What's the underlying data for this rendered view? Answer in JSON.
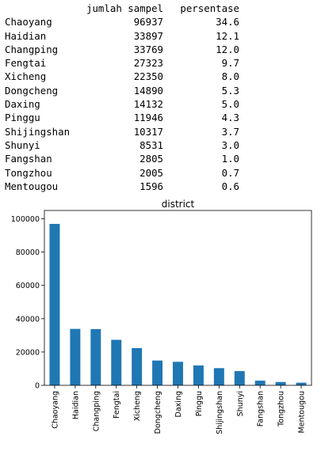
{
  "table": {
    "columns": [
      "jumlah sampel",
      "persentase"
    ],
    "rows": [
      {
        "district": "Chaoyang",
        "jumlah_sampel": "96937",
        "persentase": "34.6"
      },
      {
        "district": "Haidian",
        "jumlah_sampel": "33897",
        "persentase": "12.1"
      },
      {
        "district": "Changping",
        "jumlah_sampel": "33769",
        "persentase": "12.0"
      },
      {
        "district": "Fengtai",
        "jumlah_sampel": "27323",
        "persentase": "9.7"
      },
      {
        "district": "Xicheng",
        "jumlah_sampel": "22350",
        "persentase": "8.0"
      },
      {
        "district": "Dongcheng",
        "jumlah_sampel": "14890",
        "persentase": "5.3"
      },
      {
        "district": "Daxing",
        "jumlah_sampel": "14132",
        "persentase": "5.0"
      },
      {
        "district": "Pinggu",
        "jumlah_sampel": "11946",
        "persentase": "4.3"
      },
      {
        "district": "Shijingshan",
        "jumlah_sampel": "10317",
        "persentase": "3.7"
      },
      {
        "district": "Shunyi",
        "jumlah_sampel": "8531",
        "persentase": "3.0"
      },
      {
        "district": "Fangshan",
        "jumlah_sampel": "2805",
        "persentase": "1.0"
      },
      {
        "district": "Tongzhou",
        "jumlah_sampel": "2005",
        "persentase": "0.7"
      },
      {
        "district": "Mentougou",
        "jumlah_sampel": "1596",
        "persentase": "0.6"
      }
    ]
  },
  "chart_data": {
    "type": "bar",
    "title": "district",
    "xlabel": "",
    "ylabel": "",
    "categories": [
      "Chaoyang",
      "Haidian",
      "Changping",
      "Fengtai",
      "Xicheng",
      "Dongcheng",
      "Daxing",
      "Pinggu",
      "Shijingshan",
      "Shunyi",
      "Fangshan",
      "Tongzhou",
      "Mentougou"
    ],
    "values": [
      96937,
      33897,
      33769,
      27323,
      22350,
      14890,
      14132,
      11946,
      10317,
      8531,
      2805,
      2005,
      1596
    ],
    "ylim": [
      0,
      105000
    ],
    "yticks": [
      0,
      20000,
      40000,
      60000,
      80000,
      100000
    ],
    "ytick_labels": [
      "0",
      "20000",
      "40000",
      "60000",
      "80000",
      "100000"
    ],
    "bar_color": "#1f77b4",
    "legend": false,
    "grid": false
  }
}
